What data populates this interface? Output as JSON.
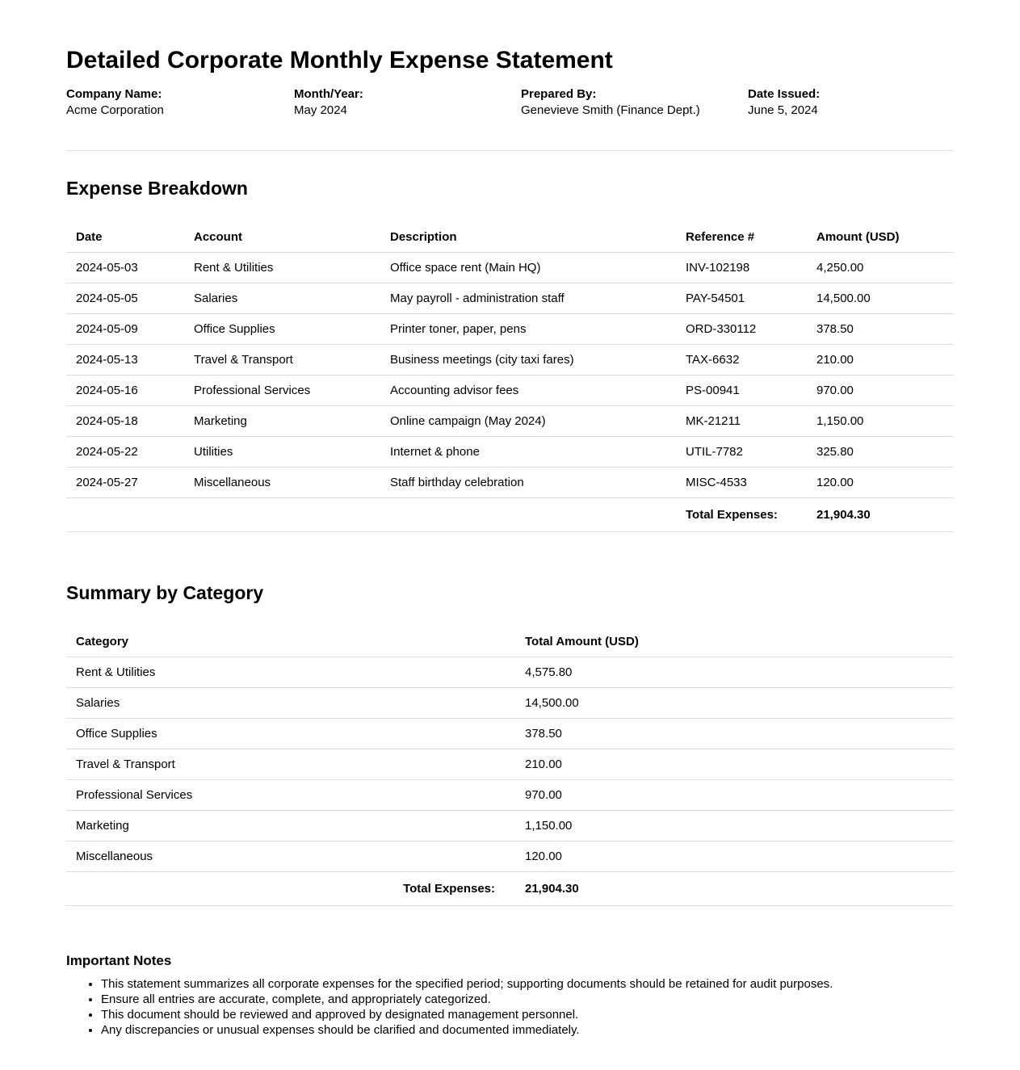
{
  "document": {
    "title": "Detailed Corporate Monthly Expense Statement",
    "meta": [
      {
        "label": "Company Name:",
        "value": "Acme Corporation"
      },
      {
        "label": "Month/Year:",
        "value": "May 2024"
      },
      {
        "label": "Prepared By:",
        "value": "Genevieve Smith (Finance Dept.)"
      },
      {
        "label": "Date Issued:",
        "value": "June 5, 2024"
      }
    ]
  },
  "expense_breakdown": {
    "heading": "Expense Breakdown",
    "columns": [
      "Date",
      "Account",
      "Description",
      "Reference #",
      "Amount (USD)"
    ],
    "rows": [
      [
        "2024-05-03",
        "Rent & Utilities",
        "Office space rent (Main HQ)",
        "INV-102198",
        "4,250.00"
      ],
      [
        "2024-05-05",
        "Salaries",
        "May payroll - administration staff",
        "PAY-54501",
        "14,500.00"
      ],
      [
        "2024-05-09",
        "Office Supplies",
        "Printer toner, paper, pens",
        "ORD-330112",
        "378.50"
      ],
      [
        "2024-05-13",
        "Travel & Transport",
        "Business meetings (city taxi fares)",
        "TAX-6632",
        "210.00"
      ],
      [
        "2024-05-16",
        "Professional Services",
        "Accounting advisor fees",
        "PS-00941",
        "970.00"
      ],
      [
        "2024-05-18",
        "Marketing",
        "Online campaign (May 2024)",
        "MK-21211",
        "1,150.00"
      ],
      [
        "2024-05-22",
        "Utilities",
        "Internet & phone",
        "UTIL-7782",
        "325.80"
      ],
      [
        "2024-05-27",
        "Miscellaneous",
        "Staff birthday celebration",
        "MISC-4533",
        "120.00"
      ]
    ],
    "total_label": "Total Expenses:",
    "total_value": "21,904.30"
  },
  "summary": {
    "heading": "Summary by Category",
    "columns": [
      "Category",
      "Total Amount (USD)"
    ],
    "rows": [
      [
        "Rent & Utilities",
        "4,575.80"
      ],
      [
        "Salaries",
        "14,500.00"
      ],
      [
        "Office Supplies",
        "378.50"
      ],
      [
        "Travel & Transport",
        "210.00"
      ],
      [
        "Professional Services",
        "970.00"
      ],
      [
        "Marketing",
        "1,150.00"
      ],
      [
        "Miscellaneous",
        "120.00"
      ]
    ],
    "total_label": "Total Expenses:",
    "total_value": "21,904.30"
  },
  "notes": {
    "heading": "Important Notes",
    "items": [
      "This statement summarizes all corporate expenses for the specified period; supporting documents should be retained for audit purposes.",
      "Ensure all entries are accurate, complete, and appropriately categorized.",
      "This document should be reviewed and approved by designated management personnel.",
      "Any discrepancies or unusual expenses should be clarified and documented immediately."
    ]
  }
}
